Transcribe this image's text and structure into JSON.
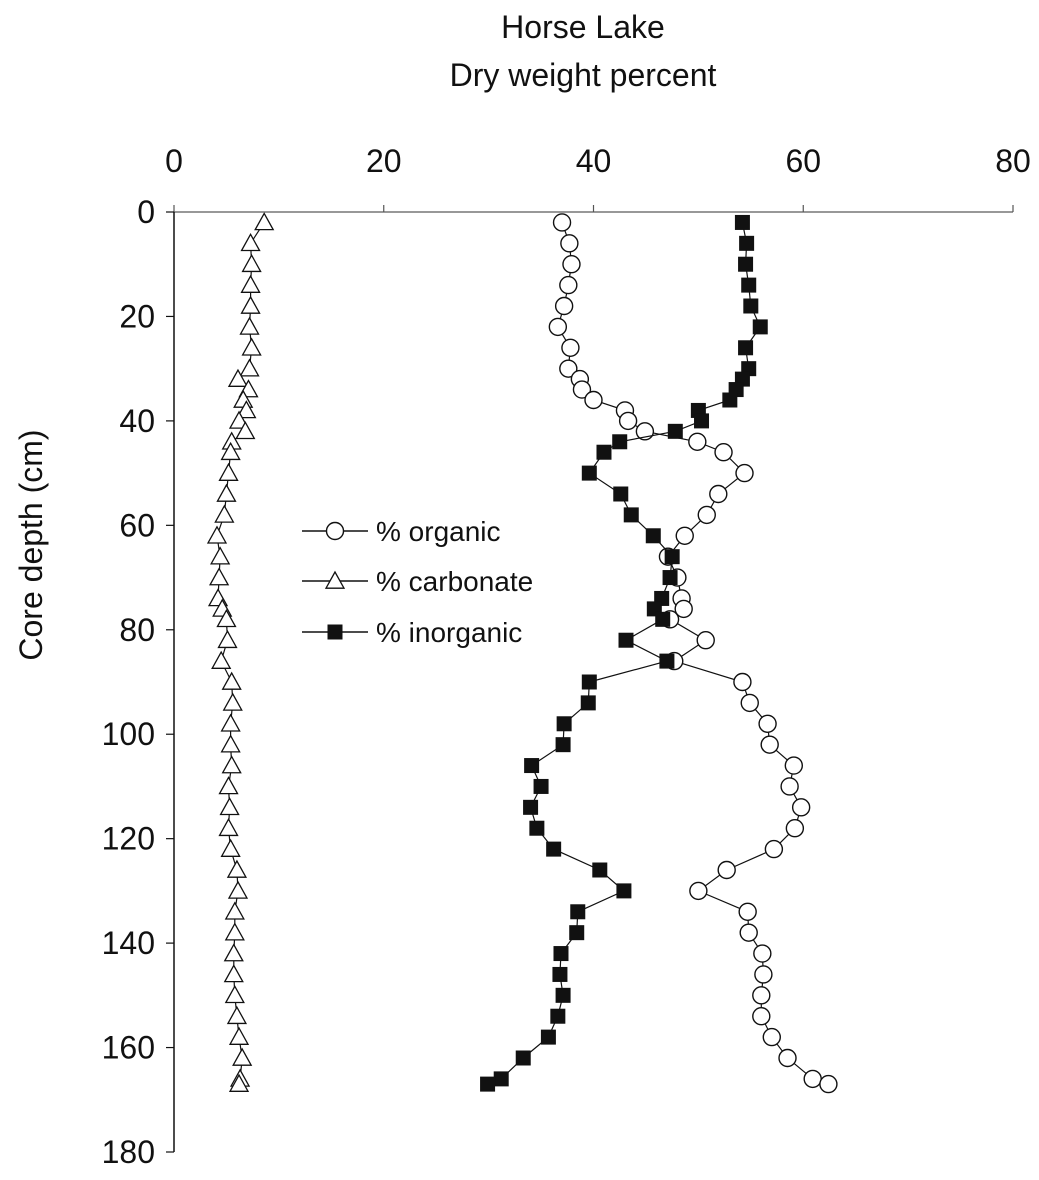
{
  "chart_data": {
    "type": "scatter",
    "title": "Horse Lake",
    "subtitle": "Dry weight percent",
    "xlabel": "",
    "ylabel": "Core depth (cm)",
    "xlim": [
      0,
      80
    ],
    "ylim": [
      0,
      180
    ],
    "y_inverted": true,
    "x_axis_position": "top",
    "x_ticks": [
      0,
      20,
      40,
      60,
      80
    ],
    "y_ticks": [
      0,
      20,
      40,
      60,
      80,
      100,
      120,
      140,
      160,
      180
    ],
    "grid": false,
    "legend_position": "center-left",
    "series": [
      {
        "name": "% organic",
        "marker": "circle-open",
        "points": [
          [
            37.0,
            2
          ],
          [
            37.7,
            6
          ],
          [
            37.9,
            10
          ],
          [
            37.6,
            14
          ],
          [
            37.2,
            18
          ],
          [
            36.6,
            22
          ],
          [
            37.8,
            26
          ],
          [
            37.6,
            30
          ],
          [
            38.7,
            32
          ],
          [
            38.9,
            34
          ],
          [
            40.0,
            36
          ],
          [
            43.0,
            38
          ],
          [
            43.3,
            40
          ],
          [
            44.9,
            42
          ],
          [
            49.9,
            44
          ],
          [
            52.4,
            46
          ],
          [
            54.4,
            50
          ],
          [
            51.9,
            54
          ],
          [
            50.8,
            58
          ],
          [
            48.7,
            62
          ],
          [
            47.1,
            66
          ],
          [
            48.0,
            70
          ],
          [
            48.4,
            74
          ],
          [
            48.6,
            76
          ],
          [
            47.3,
            78
          ],
          [
            50.7,
            82
          ],
          [
            47.7,
            86
          ],
          [
            54.2,
            90
          ],
          [
            54.9,
            94
          ],
          [
            56.6,
            98
          ],
          [
            56.8,
            102
          ],
          [
            59.1,
            106
          ],
          [
            58.7,
            110
          ],
          [
            59.8,
            114
          ],
          [
            59.2,
            118
          ],
          [
            57.2,
            122
          ],
          [
            52.7,
            126
          ],
          [
            50.0,
            130
          ],
          [
            54.7,
            134
          ],
          [
            54.8,
            138
          ],
          [
            56.1,
            142
          ],
          [
            56.2,
            146
          ],
          [
            56.0,
            150
          ],
          [
            56.0,
            154
          ],
          [
            57.0,
            158
          ],
          [
            58.5,
            162
          ],
          [
            60.9,
            166
          ],
          [
            62.4,
            167
          ]
        ]
      },
      {
        "name": "% carbonate",
        "marker": "triangle-open",
        "points": [
          [
            8.6,
            2
          ],
          [
            7.3,
            6
          ],
          [
            7.4,
            10
          ],
          [
            7.3,
            14
          ],
          [
            7.3,
            18
          ],
          [
            7.2,
            22
          ],
          [
            7.4,
            26
          ],
          [
            7.2,
            30
          ],
          [
            6.1,
            32
          ],
          [
            7.1,
            34
          ],
          [
            6.6,
            36
          ],
          [
            6.9,
            38
          ],
          [
            6.2,
            40
          ],
          [
            6.8,
            42
          ],
          [
            5.5,
            44
          ],
          [
            5.4,
            46
          ],
          [
            5.2,
            50
          ],
          [
            5.0,
            54
          ],
          [
            4.8,
            58
          ],
          [
            4.1,
            62
          ],
          [
            4.4,
            66
          ],
          [
            4.3,
            70
          ],
          [
            4.2,
            74
          ],
          [
            4.6,
            76
          ],
          [
            5.0,
            78
          ],
          [
            5.1,
            82
          ],
          [
            4.5,
            86
          ],
          [
            5.5,
            90
          ],
          [
            5.6,
            94
          ],
          [
            5.4,
            98
          ],
          [
            5.4,
            102
          ],
          [
            5.5,
            106
          ],
          [
            5.2,
            110
          ],
          [
            5.3,
            114
          ],
          [
            5.2,
            118
          ],
          [
            5.4,
            122
          ],
          [
            6.0,
            126
          ],
          [
            6.1,
            130
          ],
          [
            5.8,
            134
          ],
          [
            5.8,
            138
          ],
          [
            5.7,
            142
          ],
          [
            5.7,
            146
          ],
          [
            5.8,
            150
          ],
          [
            6.0,
            154
          ],
          [
            6.2,
            158
          ],
          [
            6.5,
            162
          ],
          [
            6.3,
            166
          ],
          [
            6.2,
            167
          ]
        ]
      },
      {
        "name": "% inorganic",
        "marker": "square-filled",
        "points": [
          [
            54.2,
            2
          ],
          [
            54.6,
            6
          ],
          [
            54.5,
            10
          ],
          [
            54.8,
            14
          ],
          [
            55.0,
            18
          ],
          [
            55.9,
            22
          ],
          [
            54.5,
            26
          ],
          [
            54.8,
            30
          ],
          [
            54.2,
            32
          ],
          [
            53.6,
            34
          ],
          [
            53.0,
            36
          ],
          [
            50.0,
            38
          ],
          [
            50.3,
            40
          ],
          [
            47.8,
            42
          ],
          [
            42.5,
            44
          ],
          [
            41.0,
            46
          ],
          [
            39.6,
            50
          ],
          [
            42.6,
            54
          ],
          [
            43.6,
            58
          ],
          [
            45.7,
            62
          ],
          [
            47.5,
            66
          ],
          [
            47.3,
            70
          ],
          [
            46.5,
            74
          ],
          [
            45.8,
            76
          ],
          [
            46.6,
            78
          ],
          [
            43.1,
            82
          ],
          [
            47.0,
            86
          ],
          [
            39.6,
            90
          ],
          [
            39.5,
            94
          ],
          [
            37.2,
            98
          ],
          [
            37.1,
            102
          ],
          [
            34.1,
            106
          ],
          [
            35.0,
            110
          ],
          [
            34.0,
            114
          ],
          [
            34.6,
            118
          ],
          [
            36.2,
            122
          ],
          [
            40.6,
            126
          ],
          [
            42.9,
            130
          ],
          [
            38.5,
            134
          ],
          [
            38.4,
            138
          ],
          [
            36.9,
            142
          ],
          [
            36.8,
            146
          ],
          [
            37.1,
            150
          ],
          [
            36.6,
            154
          ],
          [
            35.7,
            158
          ],
          [
            33.3,
            162
          ],
          [
            31.2,
            166
          ],
          [
            29.9,
            167
          ]
        ]
      }
    ]
  }
}
